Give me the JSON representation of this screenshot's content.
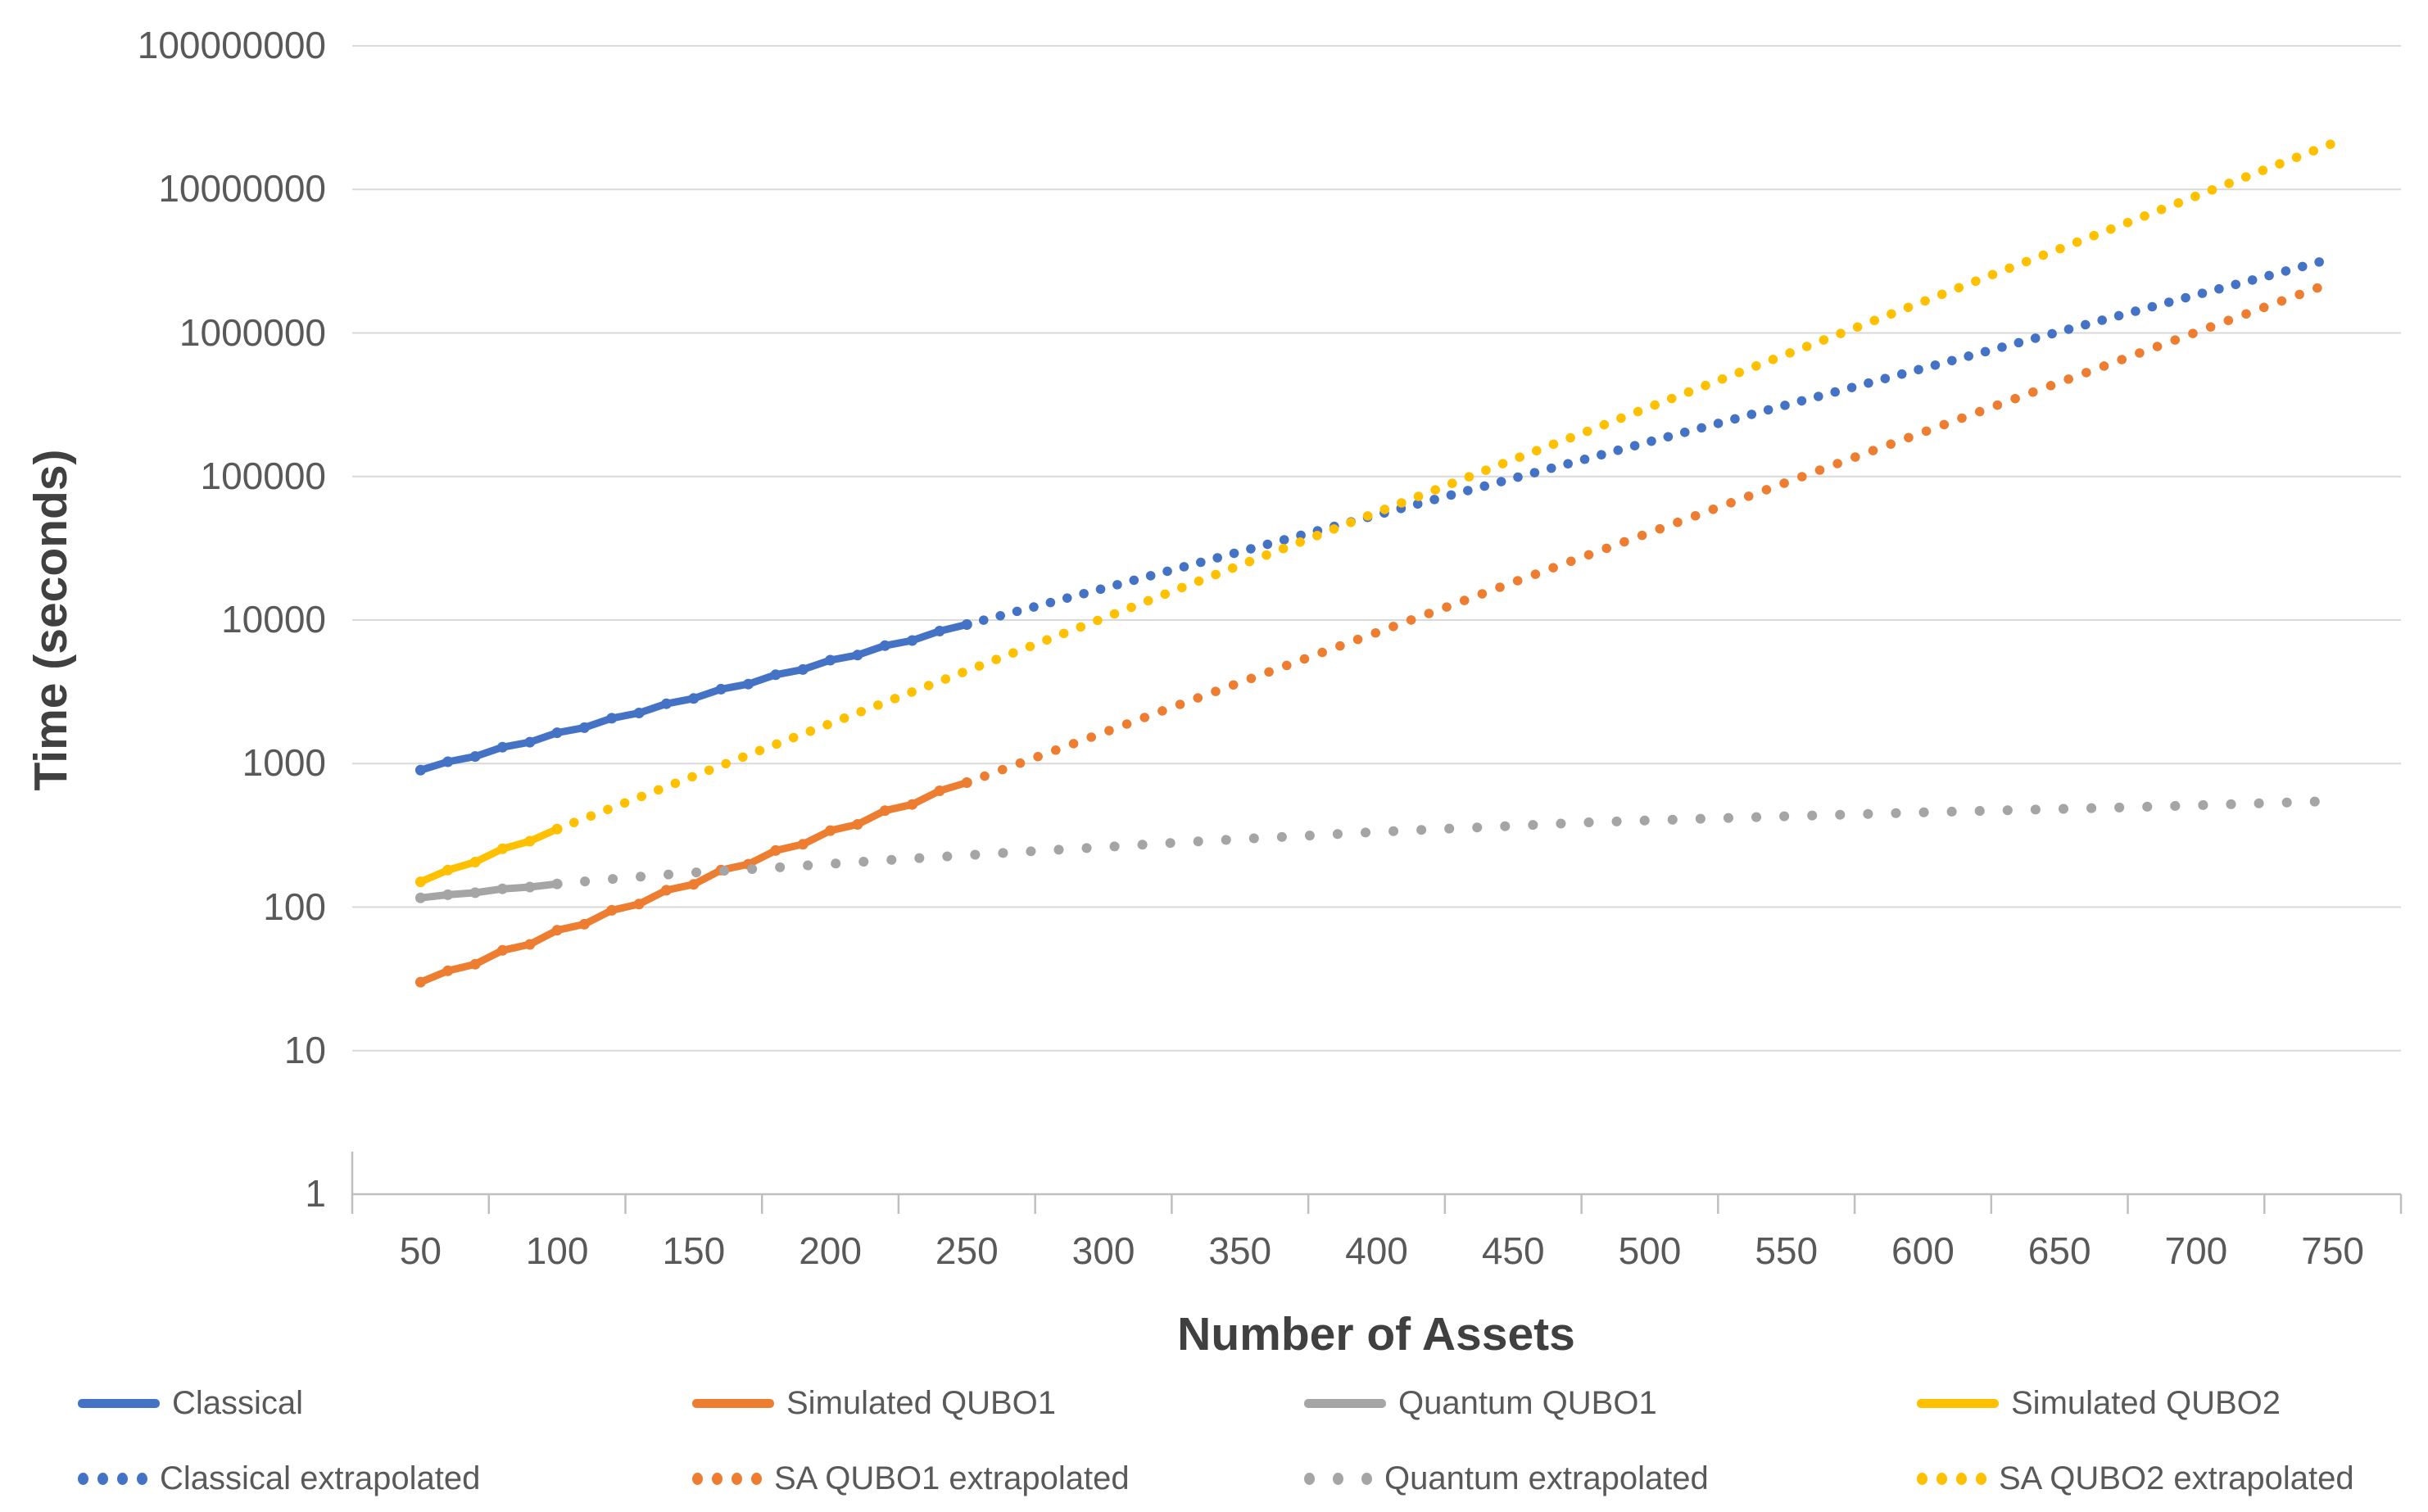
{
  "chart_data": {
    "type": "line",
    "title": "",
    "xlabel": "Number of Assets",
    "ylabel": "Time (seconds)",
    "x_axis": {
      "min": 25,
      "max": 775,
      "ticks": [
        50,
        100,
        150,
        200,
        250,
        300,
        350,
        400,
        450,
        500,
        550,
        600,
        650,
        700,
        750
      ],
      "gridlines": false
    },
    "y_axis": {
      "scale": "log",
      "min": 1,
      "max": 100000000,
      "ticks": [
        1,
        10,
        100,
        1000,
        10000,
        100000,
        1000000,
        10000000,
        100000000
      ],
      "tick_labels": [
        "1",
        "10",
        "100",
        "1000",
        "10000",
        "100000",
        "1000000",
        "10000000",
        "100000000"
      ],
      "gridlines": true
    },
    "colors": {
      "blue": "#4472C4",
      "orange": "#ED7D31",
      "gray": "#A5A5A5",
      "yellow": "#FFC000",
      "gridline": "#D9D9D9",
      "axis_line": "#BFBFBF",
      "tick_text": "#595959",
      "axis_title_text": "#404040"
    },
    "legend_position": "bottom",
    "series": [
      {
        "id": "classical",
        "legend_label": "Classical",
        "color": "#4472C4",
        "style": "solid",
        "width": 9,
        "points": [
          [
            50,
            900
          ],
          [
            60,
            1030
          ],
          [
            70,
            1120
          ],
          [
            80,
            1300
          ],
          [
            90,
            1410
          ],
          [
            100,
            1640
          ],
          [
            110,
            1780
          ],
          [
            120,
            2070
          ],
          [
            130,
            2250
          ],
          [
            140,
            2610
          ],
          [
            150,
            2840
          ],
          [
            160,
            3300
          ],
          [
            170,
            3580
          ],
          [
            180,
            4160
          ],
          [
            190,
            4520
          ],
          [
            200,
            5250
          ],
          [
            210,
            5700
          ],
          [
            220,
            6630
          ],
          [
            230,
            7200
          ],
          [
            240,
            8370
          ],
          [
            250,
            9300
          ]
        ]
      },
      {
        "id": "simulated-qubo1",
        "legend_label": "Simulated QUBO1",
        "color": "#ED7D31",
        "style": "solid",
        "width": 9,
        "points": [
          [
            50,
            30
          ],
          [
            60,
            36
          ],
          [
            70,
            40
          ],
          [
            80,
            50
          ],
          [
            90,
            55
          ],
          [
            100,
            69
          ],
          [
            110,
            76
          ],
          [
            120,
            95
          ],
          [
            130,
            105
          ],
          [
            140,
            131
          ],
          [
            150,
            144
          ],
          [
            160,
            181
          ],
          [
            170,
            199
          ],
          [
            180,
            248
          ],
          [
            190,
            274
          ],
          [
            200,
            341
          ],
          [
            210,
            377
          ],
          [
            220,
            470
          ],
          [
            230,
            519
          ],
          [
            240,
            646
          ],
          [
            250,
            737
          ]
        ]
      },
      {
        "id": "quantum-qubo1",
        "legend_label": "Quantum QUBO1",
        "color": "#A5A5A5",
        "style": "solid",
        "width": 9,
        "points": [
          [
            50,
            116
          ],
          [
            60,
            122
          ],
          [
            70,
            126
          ],
          [
            80,
            134
          ],
          [
            90,
            138
          ],
          [
            100,
            145
          ]
        ]
      },
      {
        "id": "simulated-qubo2",
        "legend_label": "Simulated QUBO2",
        "color": "#FFC000",
        "style": "solid",
        "width": 9,
        "points": [
          [
            50,
            150
          ],
          [
            60,
            181
          ],
          [
            70,
            206
          ],
          [
            80,
            255
          ],
          [
            90,
            288
          ],
          [
            100,
            350
          ]
        ]
      },
      {
        "id": "classical-extrapolated",
        "legend_label": "Classical extrapolated",
        "color": "#4472C4",
        "style": "dotted",
        "width": 11.5,
        "gap": 21,
        "legend_dots": 4,
        "points": [
          [
            250,
            9300
          ],
          [
            275,
            12400
          ],
          [
            300,
            16600
          ],
          [
            325,
            22300
          ],
          [
            350,
            29900
          ],
          [
            375,
            40200
          ],
          [
            400,
            53900
          ],
          [
            425,
            72300
          ],
          [
            450,
            97000
          ],
          [
            475,
            130000
          ],
          [
            500,
            175000
          ],
          [
            525,
            234000
          ],
          [
            550,
            315000
          ],
          [
            575,
            422000
          ],
          [
            600,
            566000
          ],
          [
            625,
            760000
          ],
          [
            650,
            1020000
          ],
          [
            675,
            1370000
          ],
          [
            700,
            1840000
          ],
          [
            725,
            2460000
          ],
          [
            750,
            3310000
          ]
        ]
      },
      {
        "id": "sa-qubo1-extrapolated",
        "legend_label": "SA QUBO1 extrapolated",
        "color": "#ED7D31",
        "style": "dotted",
        "width": 11.5,
        "gap": 23,
        "legend_dots": 4,
        "points": [
          [
            250,
            737
          ],
          [
            275,
            1100
          ],
          [
            300,
            1640
          ],
          [
            325,
            2460
          ],
          [
            350,
            3670
          ],
          [
            375,
            5480
          ],
          [
            400,
            8180
          ],
          [
            425,
            12200
          ],
          [
            450,
            18300
          ],
          [
            475,
            27300
          ],
          [
            500,
            40700
          ],
          [
            525,
            60800
          ],
          [
            550,
            90900
          ],
          [
            575,
            136000
          ],
          [
            600,
            203000
          ],
          [
            625,
            303000
          ],
          [
            650,
            452000
          ],
          [
            675,
            676000
          ],
          [
            700,
            1010000
          ],
          [
            725,
            1510000
          ],
          [
            750,
            2250000
          ]
        ]
      },
      {
        "id": "quantum-extrapolated",
        "legend_label": "Quantum extrapolated",
        "color": "#A5A5A5",
        "style": "dotted",
        "width": 12,
        "gap": 34,
        "legend_dots": 3,
        "points": [
          [
            100,
            145
          ],
          [
            125,
            160
          ],
          [
            150,
            174
          ],
          [
            175,
            186
          ],
          [
            200,
            200
          ],
          [
            225,
            215
          ],
          [
            250,
            230
          ],
          [
            275,
            246
          ],
          [
            300,
            262
          ],
          [
            325,
            280
          ],
          [
            350,
            298
          ],
          [
            375,
            315
          ],
          [
            400,
            334
          ],
          [
            425,
            351
          ],
          [
            450,
            368
          ],
          [
            475,
            388
          ],
          [
            500,
            402
          ],
          [
            525,
            416
          ],
          [
            550,
            430
          ],
          [
            575,
            443
          ],
          [
            600,
            457
          ],
          [
            625,
            470
          ],
          [
            650,
            483
          ],
          [
            675,
            496
          ],
          [
            700,
            512
          ],
          [
            725,
            530
          ],
          [
            750,
            548
          ]
        ]
      },
      {
        "id": "sa-qubo2-extrapolated",
        "legend_label": "SA QUBO2 extrapolated",
        "color": "#FFC000",
        "style": "dotted",
        "width": 11.5,
        "gap": 22,
        "legend_dots": 4,
        "points": [
          [
            100,
            350
          ],
          [
            125,
            534
          ],
          [
            150,
            816
          ],
          [
            175,
            1250
          ],
          [
            200,
            1900
          ],
          [
            225,
            2900
          ],
          [
            250,
            4430
          ],
          [
            275,
            6760
          ],
          [
            300,
            10300
          ],
          [
            325,
            15800
          ],
          [
            350,
            24100
          ],
          [
            375,
            36700
          ],
          [
            400,
            56100
          ],
          [
            425,
            85600
          ],
          [
            450,
            131000
          ],
          [
            475,
            199000
          ],
          [
            500,
            305000
          ],
          [
            525,
            465000
          ],
          [
            550,
            710000
          ],
          [
            575,
            1080000
          ],
          [
            600,
            1650000
          ],
          [
            625,
            2530000
          ],
          [
            650,
            3850000
          ],
          [
            675,
            5880000
          ],
          [
            700,
            8980000
          ],
          [
            725,
            13700000
          ],
          [
            750,
            20900000
          ]
        ]
      }
    ]
  }
}
